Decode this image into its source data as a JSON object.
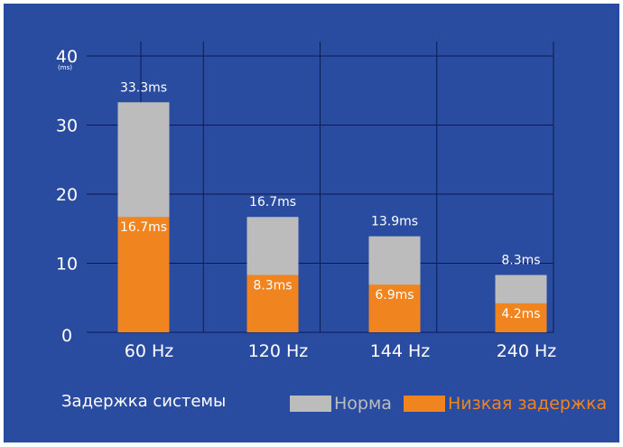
{
  "chart_data": {
    "type": "bar",
    "title": "",
    "subtitle": "Задержка системы",
    "categories": [
      "60 Hz",
      "120 Hz",
      "144 Hz",
      "240 Hz"
    ],
    "series": [
      {
        "name": "Норма",
        "values": [
          33.3,
          16.7,
          13.9,
          8.3
        ],
        "labels": [
          "33.3ms",
          "16.7ms",
          "13.9ms",
          "8.3ms"
        ],
        "color": "#bcbcbc"
      },
      {
        "name": "Низкая задержка",
        "values": [
          16.7,
          8.3,
          6.9,
          4.2
        ],
        "labels": [
          "16.7ms",
          "8.3ms",
          "6.9ms",
          "4.2ms"
        ],
        "color": "#f0841e"
      }
    ],
    "xlabel": "",
    "ylabel": "",
    "y_unit": "(ms)",
    "ylim": [
      0,
      40
    ],
    "yticks": [
      "0",
      "10",
      "20",
      "30",
      "40"
    ],
    "grid": true,
    "legend_position": "bottom-right",
    "background_color": "#2a4ca0",
    "gridline_color": "#0c1a52",
    "text_color": "#ffffff"
  }
}
